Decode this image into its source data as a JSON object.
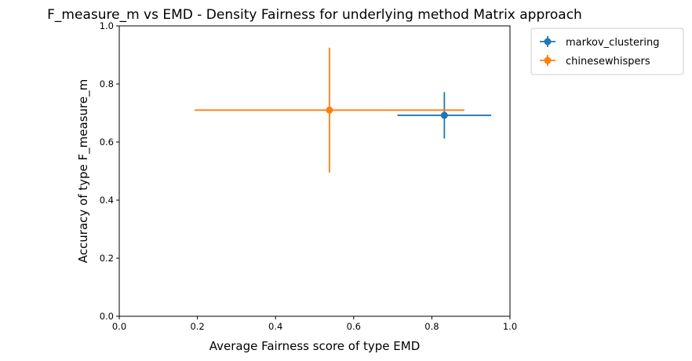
{
  "chart_data": {
    "type": "scatter",
    "title": "F_measure_m vs EMD - Density Fairness for underlying method Matrix approach",
    "xlabel": "Average Fairness score of type EMD",
    "ylabel": "Accuracy of type F_measure_m",
    "xlim": [
      0.0,
      1.0
    ],
    "ylim": [
      0.0,
      1.0
    ],
    "xticks": [
      "0.0",
      "0.2",
      "0.4",
      "0.6",
      "0.8",
      "1.0"
    ],
    "yticks": [
      "0.0",
      "0.2",
      "0.4",
      "0.6",
      "0.8",
      "1.0"
    ],
    "grid": false,
    "legend_position": "outside-top-right",
    "series": [
      {
        "name": "markov_clustering",
        "color": "#1f77b4",
        "x": 0.832,
        "y": 0.692,
        "xerr": 0.12,
        "yerr": 0.08
      },
      {
        "name": "chinesewhispers",
        "color": "#ff7f0e",
        "x": 0.538,
        "y": 0.71,
        "xerr": 0.345,
        "yerr": 0.215
      }
    ]
  }
}
